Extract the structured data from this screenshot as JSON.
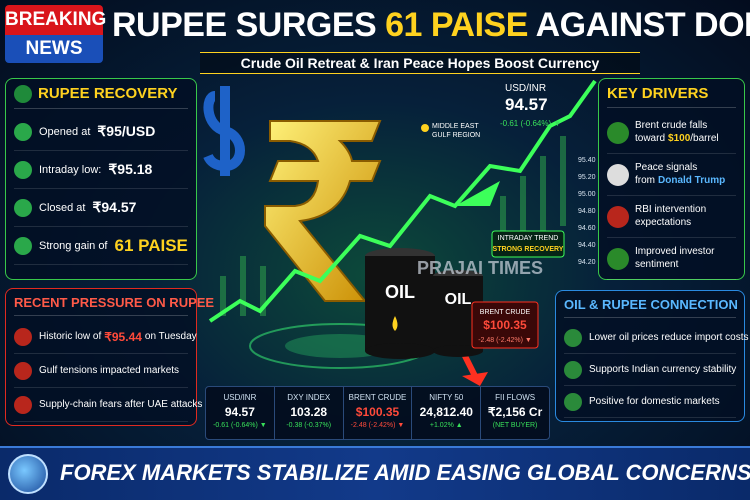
{
  "header": {
    "badge": [
      "BREAKING",
      "NEWS"
    ],
    "title_parts": [
      "RUPEE SURGES",
      "61 PAISE",
      "AGAINST DOLLAR"
    ],
    "subtitle": "Crude Oil Retreat & Iran Peace Hopes Boost Currency"
  },
  "recovery": {
    "title": "RUPEE RECOVERY",
    "items": [
      {
        "label": "Opened at",
        "value": "₹95/USD"
      },
      {
        "label": "Intraday low:",
        "value": "₹95.18"
      },
      {
        "label": "Closed at",
        "value": "₹94.57"
      },
      {
        "label": "Strong gain of",
        "value": "61 PAISE"
      }
    ]
  },
  "pressure": {
    "title": "RECENT PRESSURE ON RUPEE",
    "items": [
      [
        "Historic low of",
        "₹95.44",
        "on Tuesday"
      ],
      [
        "Gulf tensions impacted markets"
      ],
      [
        "Supply-chain fears after UAE attacks"
      ]
    ]
  },
  "center": {
    "usd_inr": {
      "label": "USD/INR",
      "value": "94.57",
      "change": "-0.61 (-0.64%) ▼"
    },
    "region": [
      "MIDDLE EAST",
      "GULF REGION"
    ],
    "trend": [
      "INTRADAY TREND",
      "STRONG RECOVERY"
    ],
    "axis": [
      "95.40",
      "95.20",
      "95.00",
      "94.80",
      "94.60",
      "94.40",
      "94.20"
    ],
    "barrels": [
      "OIL",
      "OIL"
    ],
    "brent": {
      "label": "BRENT CRUDE",
      "value": "$100.35",
      "change": "-2.48 (-2.42%) ▼"
    },
    "watermark": "PRAJAI TIMES"
  },
  "drivers": {
    "title": "KEY DRIVERS",
    "items": [
      [
        "Brent crude falls toward",
        "$100",
        "/barrel"
      ],
      [
        "Peace signals from",
        "Donald Trump"
      ],
      [
        "RBI intervention expectations"
      ],
      [
        "Improved investor sentiment"
      ]
    ]
  },
  "connection": {
    "title": "OIL & RUPEE CONNECTION",
    "items": [
      "Lower oil prices reduce import costs",
      "Supports Indian currency stability",
      "Positive for domestic markets"
    ]
  },
  "ticker": [
    {
      "label": "USD/INR",
      "value": "94.57",
      "change": "-0.61 (-0.64%) ▼"
    },
    {
      "label": "DXY INDEX",
      "value": "103.28",
      "change": "-0.38 (-0.37%)"
    },
    {
      "label": "BRENT CRUDE",
      "value": "$100.35",
      "change": "-2.48 (-2.42%) ▼"
    },
    {
      "label": "NIFTY 50",
      "value": "24,812.40",
      "change": "+1.02% ▲"
    },
    {
      "label": "FII FLOWS",
      "value": "₹2,156 Cr",
      "change": "(NET BUYER)"
    }
  ],
  "footer": "FOREX MARKETS STABILIZE AMID EASING GLOBAL CONCERNS"
}
